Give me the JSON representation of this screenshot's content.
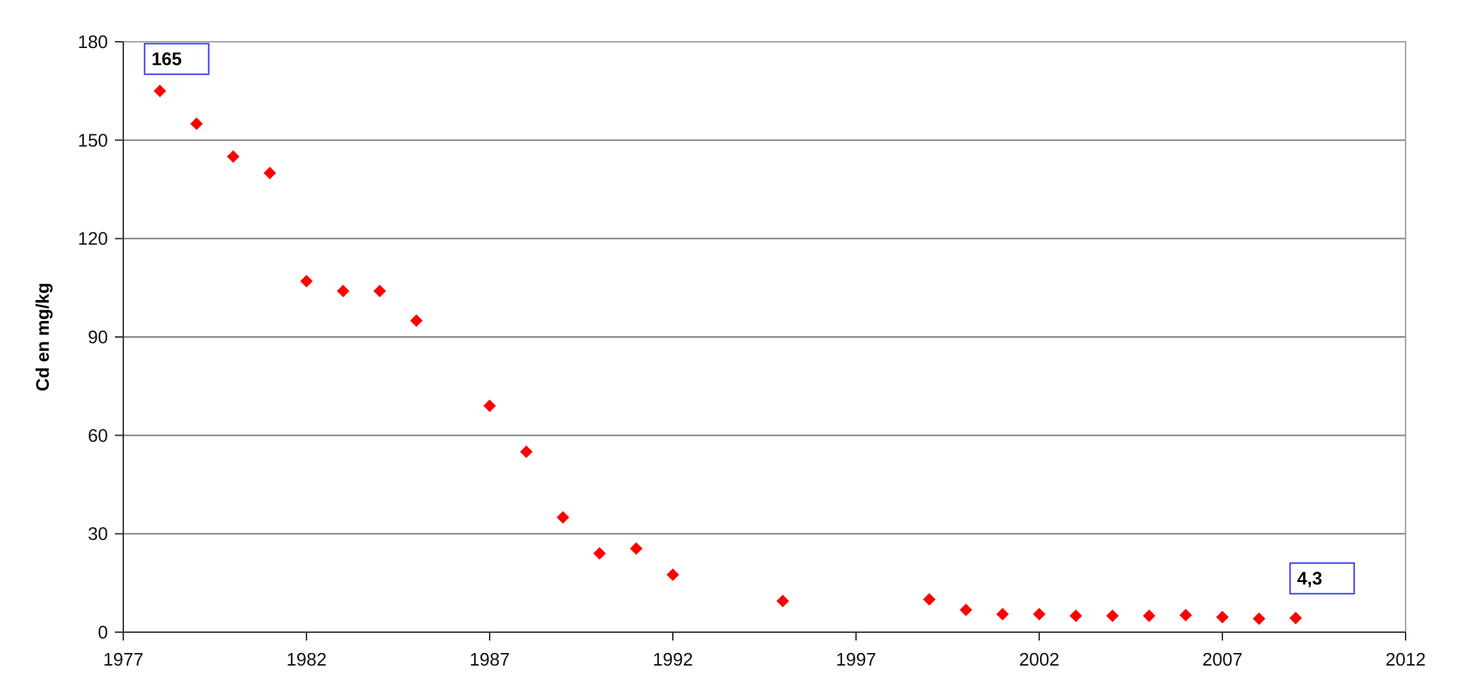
{
  "chart_data": {
    "type": "scatter",
    "title": "",
    "xlabel": "",
    "ylabel": "Cd en mg/kg",
    "xlim": [
      1977,
      2012
    ],
    "ylim": [
      0,
      180
    ],
    "x_ticks": [
      "1977",
      "1982",
      "1987",
      "1992",
      "1997",
      "2002",
      "2007",
      "2012"
    ],
    "y_ticks": [
      "0",
      "30",
      "60",
      "90",
      "120",
      "150",
      "180"
    ],
    "grid": "horizontal",
    "legend": "none",
    "marker": "diamond",
    "marker_color": "#ff0000",
    "series": [
      {
        "x": [
          1978,
          1979,
          1980,
          1981,
          1982,
          1983,
          1984,
          1985,
          1987,
          1988,
          1989,
          1990,
          1991,
          1992,
          1995,
          1999,
          2000,
          2001,
          2002,
          2003,
          2004,
          2005,
          2006,
          2007,
          2008,
          2009
        ],
        "y": [
          165,
          155,
          145,
          140,
          107,
          104,
          104,
          95,
          69,
          55,
          35,
          24,
          25.5,
          17.5,
          9.5,
          10,
          6.8,
          5.5,
          5.5,
          5,
          5,
          5,
          5.2,
          4.6,
          4.1,
          4.3
        ]
      }
    ],
    "annotations": [
      {
        "text": "165",
        "x": 1978,
        "y": 165
      },
      {
        "text": "4,3",
        "x": 2009,
        "y": 4.3
      }
    ]
  }
}
